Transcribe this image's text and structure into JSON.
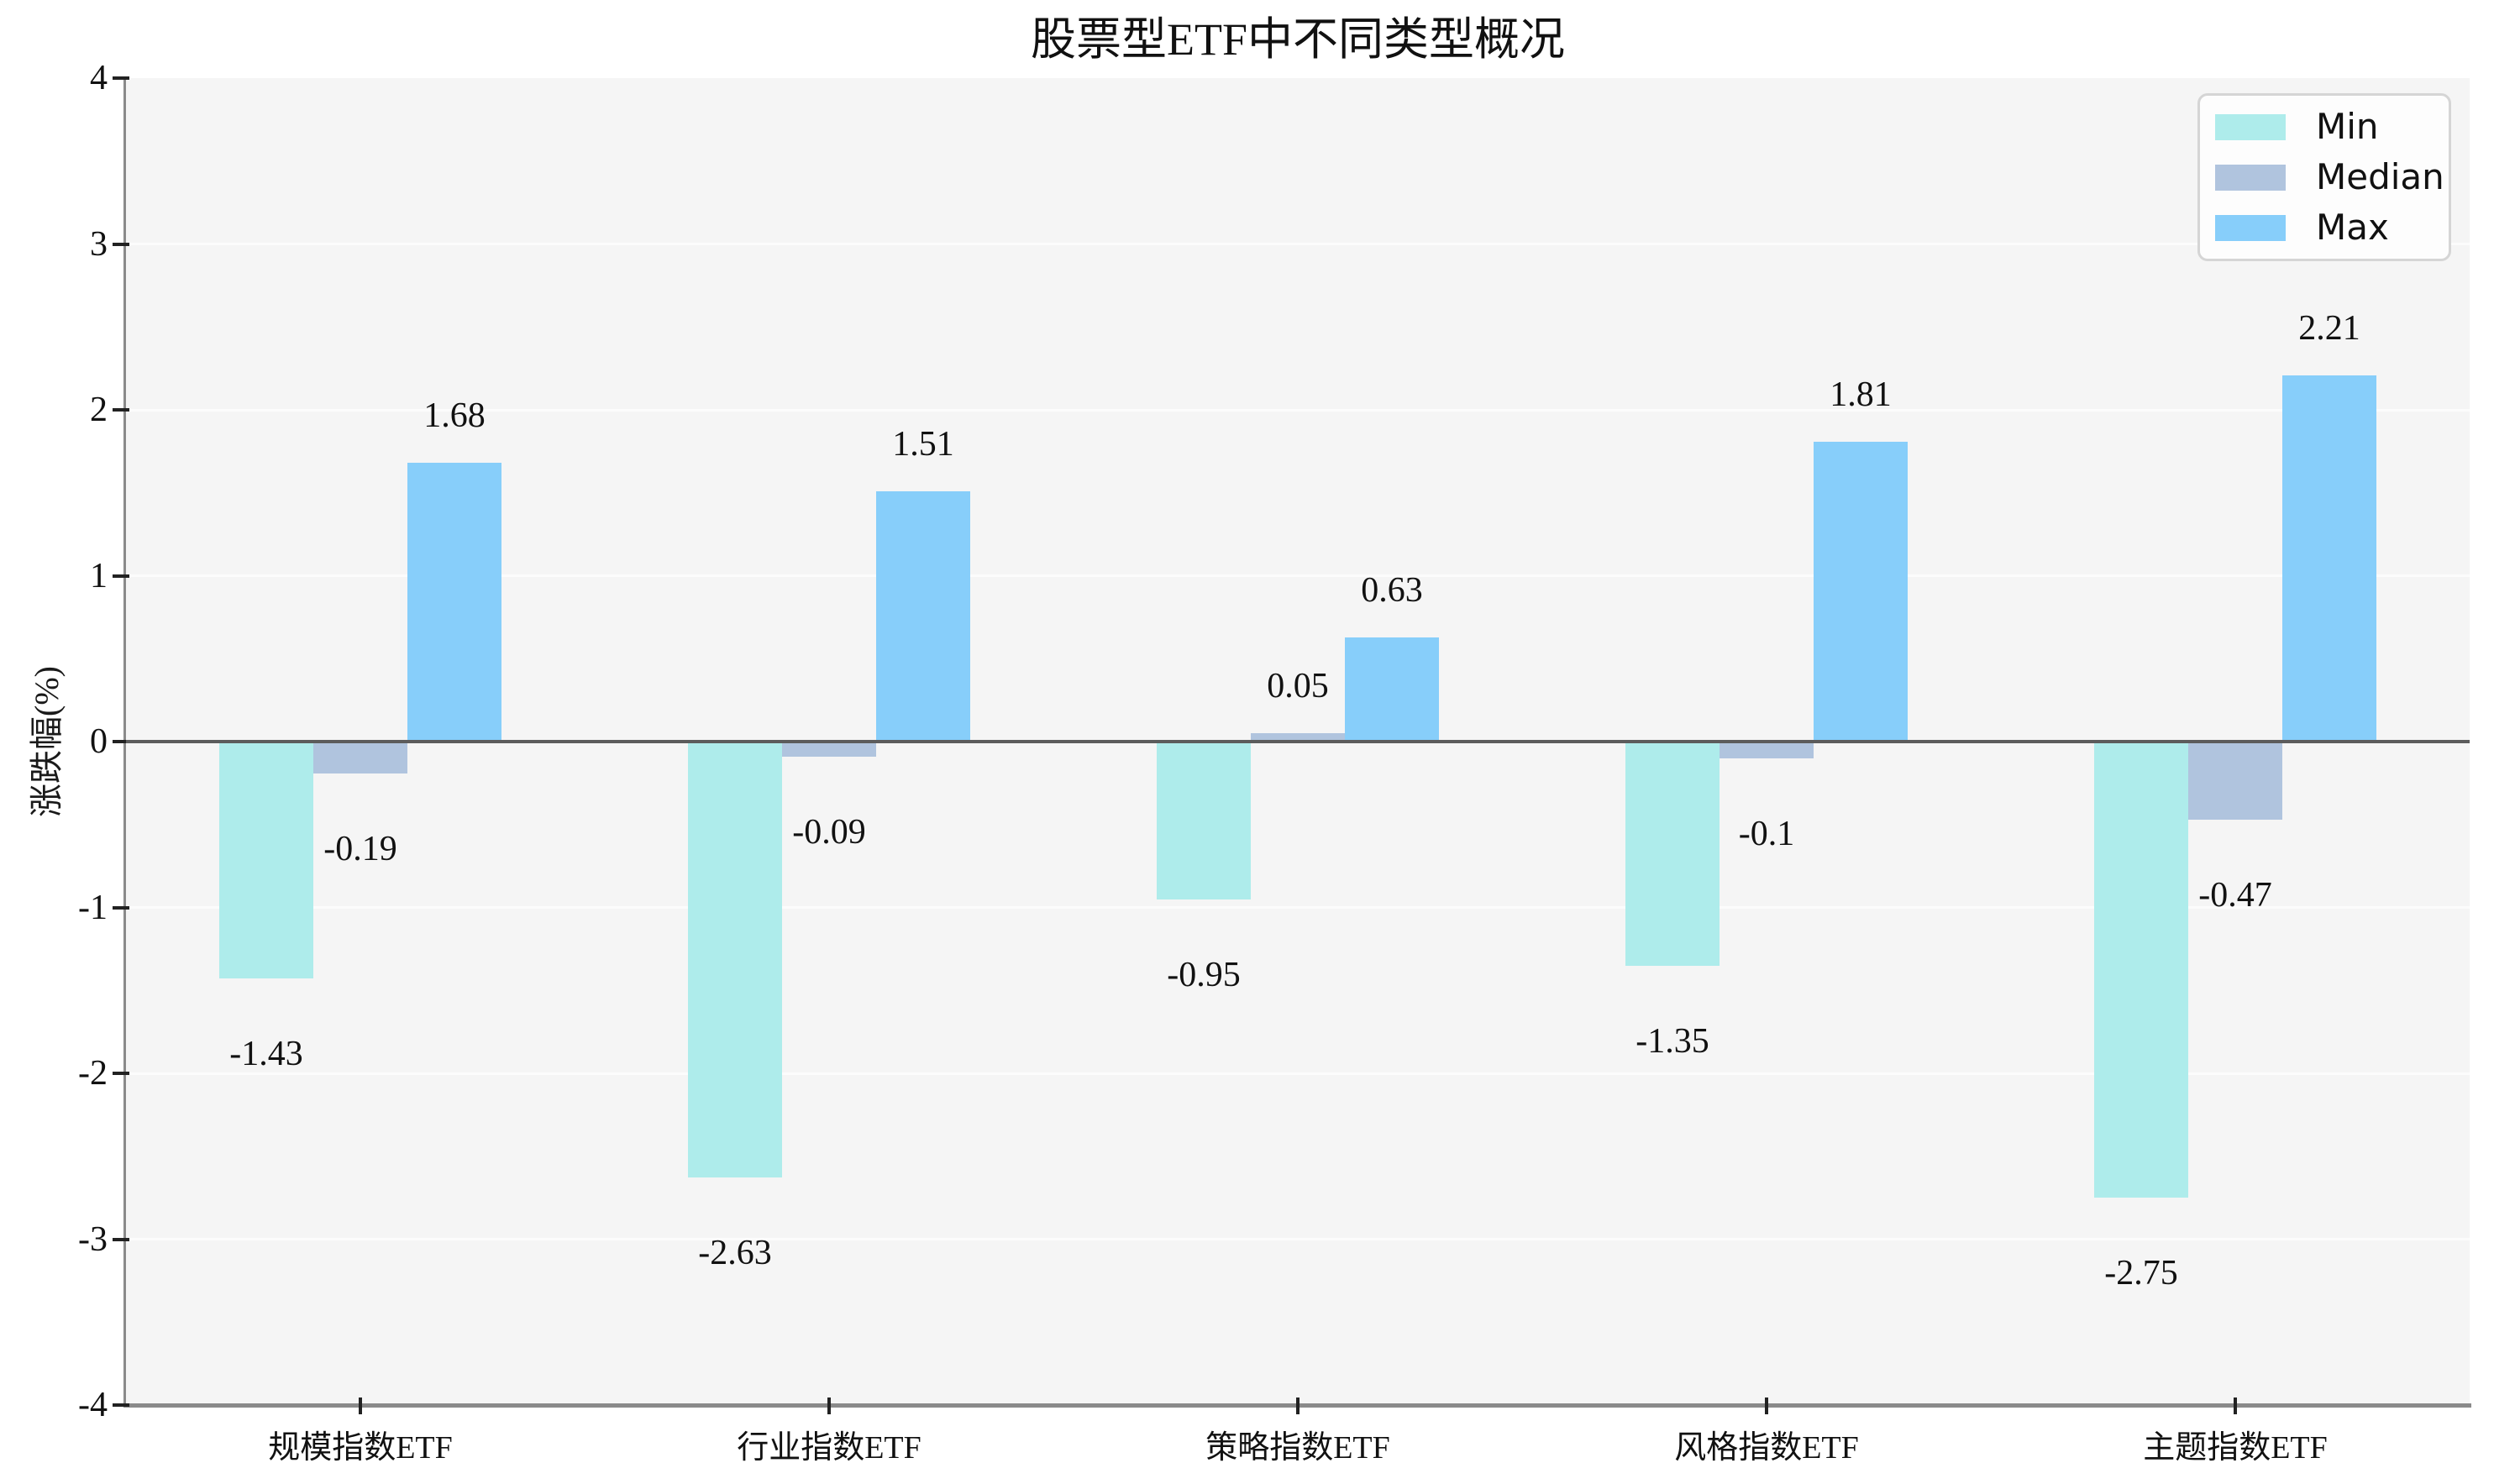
{
  "title": "股票型ETF中不同类型概况",
  "ylabel": "涨跌幅(%)",
  "legend": {
    "position": "upper right",
    "entries": [
      {
        "label": "Min",
        "color": "#AEECEB"
      },
      {
        "label": "Median",
        "color": "#B0C4DE"
      },
      {
        "label": "Max",
        "color": "#87CEFA"
      }
    ]
  },
  "chart_data": {
    "type": "bar",
    "title": "股票型ETF中不同类型概况",
    "xlabel": "",
    "ylabel": "涨跌幅(%)",
    "categories": [
      "规模指数ETF",
      "行业指数ETF",
      "策略指数ETF",
      "风格指数ETF",
      "主题指数ETF"
    ],
    "series": [
      {
        "name": "Min",
        "color": "#AEECEB",
        "values": [
          -1.43,
          -2.63,
          -0.95,
          -1.35,
          -2.75
        ]
      },
      {
        "name": "Median",
        "color": "#B0C4DE",
        "values": [
          -0.19,
          -0.09,
          0.05,
          -0.1,
          -0.47
        ]
      },
      {
        "name": "Max",
        "color": "#87CEFA",
        "values": [
          1.68,
          1.51,
          0.63,
          1.81,
          2.21
        ]
      }
    ],
    "value_labels": {
      "Min": [
        "-1.43",
        "-2.63",
        "-0.95",
        "-1.35",
        "-2.75"
      ],
      "Median": [
        "-0.19",
        "-0.09",
        "0.05",
        "-0.1",
        "-0.47"
      ],
      "Max": [
        "1.68",
        "1.51",
        "0.63",
        "1.81",
        "2.21"
      ]
    },
    "ylim": [
      -4,
      4
    ],
    "yticks": [
      4,
      3,
      2,
      1,
      0,
      -1,
      -2,
      -3,
      -4
    ],
    "grid": true,
    "legend_position": "upper right",
    "plot_bg": "#f5f5f5",
    "zero_line_color": "#5c5c5c"
  }
}
